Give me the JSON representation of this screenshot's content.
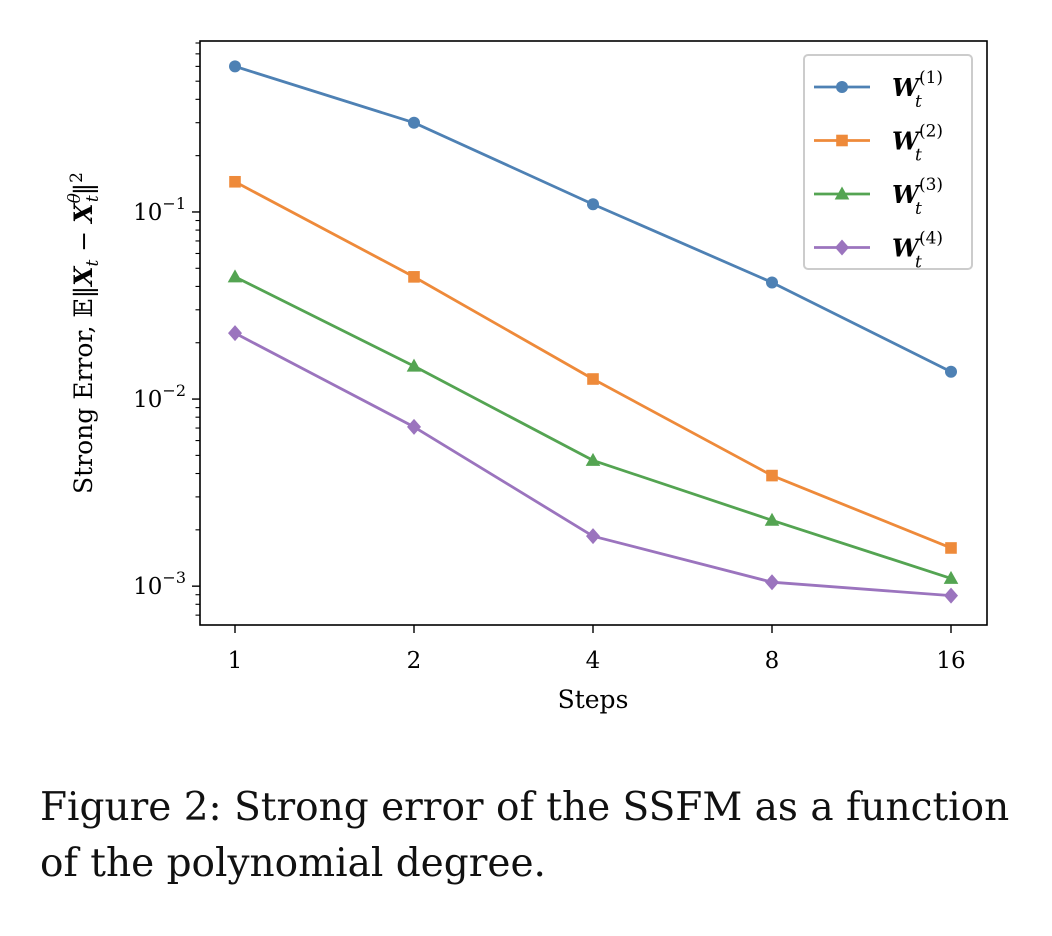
{
  "chart_data": {
    "type": "line",
    "x": [
      1,
      2,
      4,
      8,
      16
    ],
    "x_tick_labels": [
      "1",
      "2",
      "4",
      "8",
      "16"
    ],
    "xscale": "log2",
    "yscale": "log",
    "ylim": [
      0.00062,
      0.82
    ],
    "y_tick_labels": [
      {
        "value": 0.1,
        "base": "10",
        "exp": "−1"
      },
      {
        "value": 0.01,
        "base": "10",
        "exp": "−2"
      },
      {
        "value": 0.001,
        "base": "10",
        "exp": "−3"
      }
    ],
    "xlabel": "Steps",
    "ylabel": "Strong Error, 𝔼‖X_t − X_t^θ‖²",
    "legend_position": "top-right",
    "grid": false,
    "series": [
      {
        "name": "W_t^(1)",
        "base": "W",
        "sub": "t",
        "sup": "(1)",
        "color": "#4e81b4",
        "marker": "circle",
        "values": [
          0.6,
          0.3,
          0.11,
          0.042,
          0.014
        ]
      },
      {
        "name": "W_t^(2)",
        "base": "W",
        "sub": "t",
        "sup": "(2)",
        "color": "#ee8a3a",
        "marker": "square",
        "values": [
          0.145,
          0.045,
          0.0128,
          0.0039,
          0.0016
        ]
      },
      {
        "name": "W_t^(3)",
        "base": "W",
        "sub": "t",
        "sup": "(3)",
        "color": "#54a452",
        "marker": "triangle",
        "values": [
          0.045,
          0.015,
          0.0047,
          0.00225,
          0.0011
        ]
      },
      {
        "name": "W_t^(4)",
        "base": "W",
        "sub": "t",
        "sup": "(4)",
        "color": "#9b74be",
        "marker": "diamond",
        "values": [
          0.0225,
          0.0071,
          0.00185,
          0.00105,
          0.00089
        ]
      }
    ]
  },
  "caption": "Figure 2: Strong error of the SSFM as a function of the polynomial degree."
}
